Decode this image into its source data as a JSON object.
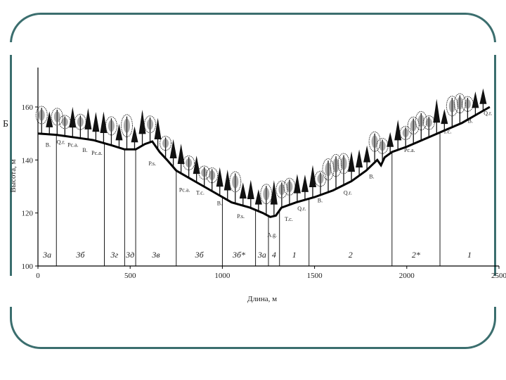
{
  "panel_letter": "Б",
  "y_axis_label": "Высота, м",
  "x_axis_label": "Длина, м",
  "x_ticks": [
    0,
    500,
    1000,
    1500,
    2000,
    2500
  ],
  "y_ticks": [
    100,
    120,
    140,
    160
  ],
  "zones": [
    {
      "label": "3а",
      "from": 0,
      "to": 100
    },
    {
      "label": "3б",
      "from": 100,
      "to": 360
    },
    {
      "label": "3г",
      "from": 360,
      "to": 470
    },
    {
      "label": "3д",
      "from": 470,
      "to": 530
    },
    {
      "label": "3в",
      "from": 530,
      "to": 750
    },
    {
      "label": "3б",
      "from": 750,
      "to": 1000
    },
    {
      "label": "3б*",
      "from": 1000,
      "to": 1180
    },
    {
      "label": "3а",
      "from": 1180,
      "to": 1250
    },
    {
      "label": "4",
      "from": 1250,
      "to": 1310
    },
    {
      "label": "1",
      "from": 1310,
      "to": 1470
    },
    {
      "label": "2",
      "from": 1470,
      "to": 1920
    },
    {
      "label": "2*",
      "from": 1920,
      "to": 2180
    },
    {
      "label": "1",
      "from": 2180,
      "to": 2500
    }
  ],
  "species_labels": [
    {
      "text": "B.",
      "x": 55,
      "y": 145
    },
    {
      "text": "Q.r.",
      "x": 125,
      "y": 146
    },
    {
      "text": "Pc.a.",
      "x": 190,
      "y": 145
    },
    {
      "text": "B.",
      "x": 255,
      "y": 143
    },
    {
      "text": "Pc.a.",
      "x": 320,
      "y": 142
    },
    {
      "text": "P.s.",
      "x": 620,
      "y": 138
    },
    {
      "text": "Pc.a.",
      "x": 795,
      "y": 128
    },
    {
      "text": "T.c.",
      "x": 880,
      "y": 127
    },
    {
      "text": "B.",
      "x": 985,
      "y": 123
    },
    {
      "text": "P.s.",
      "x": 1100,
      "y": 118
    },
    {
      "text": "A.g.",
      "x": 1270,
      "y": 111
    },
    {
      "text": "T.c.",
      "x": 1360,
      "y": 117
    },
    {
      "text": "Q.r.",
      "x": 1430,
      "y": 121
    },
    {
      "text": "B.",
      "x": 1530,
      "y": 124
    },
    {
      "text": "Q.r.",
      "x": 1680,
      "y": 127
    },
    {
      "text": "B.",
      "x": 1810,
      "y": 133
    },
    {
      "text": "Pc.a.",
      "x": 2015,
      "y": 143
    },
    {
      "text": "T.c.",
      "x": 2220,
      "y": 150
    },
    {
      "text": "B.",
      "x": 2345,
      "y": 154
    },
    {
      "text": "Q.r.",
      "x": 2440,
      "y": 157
    }
  ],
  "profile": [
    [
      0,
      150
    ],
    [
      100,
      149.5
    ],
    [
      200,
      148.5
    ],
    [
      300,
      147.5
    ],
    [
      400,
      145.5
    ],
    [
      470,
      144
    ],
    [
      530,
      144
    ],
    [
      580,
      146
    ],
    [
      620,
      147
    ],
    [
      660,
      143
    ],
    [
      700,
      140
    ],
    [
      750,
      136
    ],
    [
      850,
      132
    ],
    [
      950,
      128
    ],
    [
      1050,
      124
    ],
    [
      1150,
      122
    ],
    [
      1220,
      120
    ],
    [
      1260,
      118.5
    ],
    [
      1290,
      119
    ],
    [
      1320,
      122
    ],
    [
      1400,
      124
    ],
    [
      1500,
      126
    ],
    [
      1600,
      128.5
    ],
    [
      1700,
      132
    ],
    [
      1780,
      136
    ],
    [
      1840,
      140
    ],
    [
      1860,
      138
    ],
    [
      1880,
      141
    ],
    [
      1920,
      143
    ],
    [
      2000,
      145
    ],
    [
      2100,
      148
    ],
    [
      2200,
      151
    ],
    [
      2300,
      154
    ],
    [
      2400,
      158
    ],
    [
      2450,
      160
    ]
  ]
}
